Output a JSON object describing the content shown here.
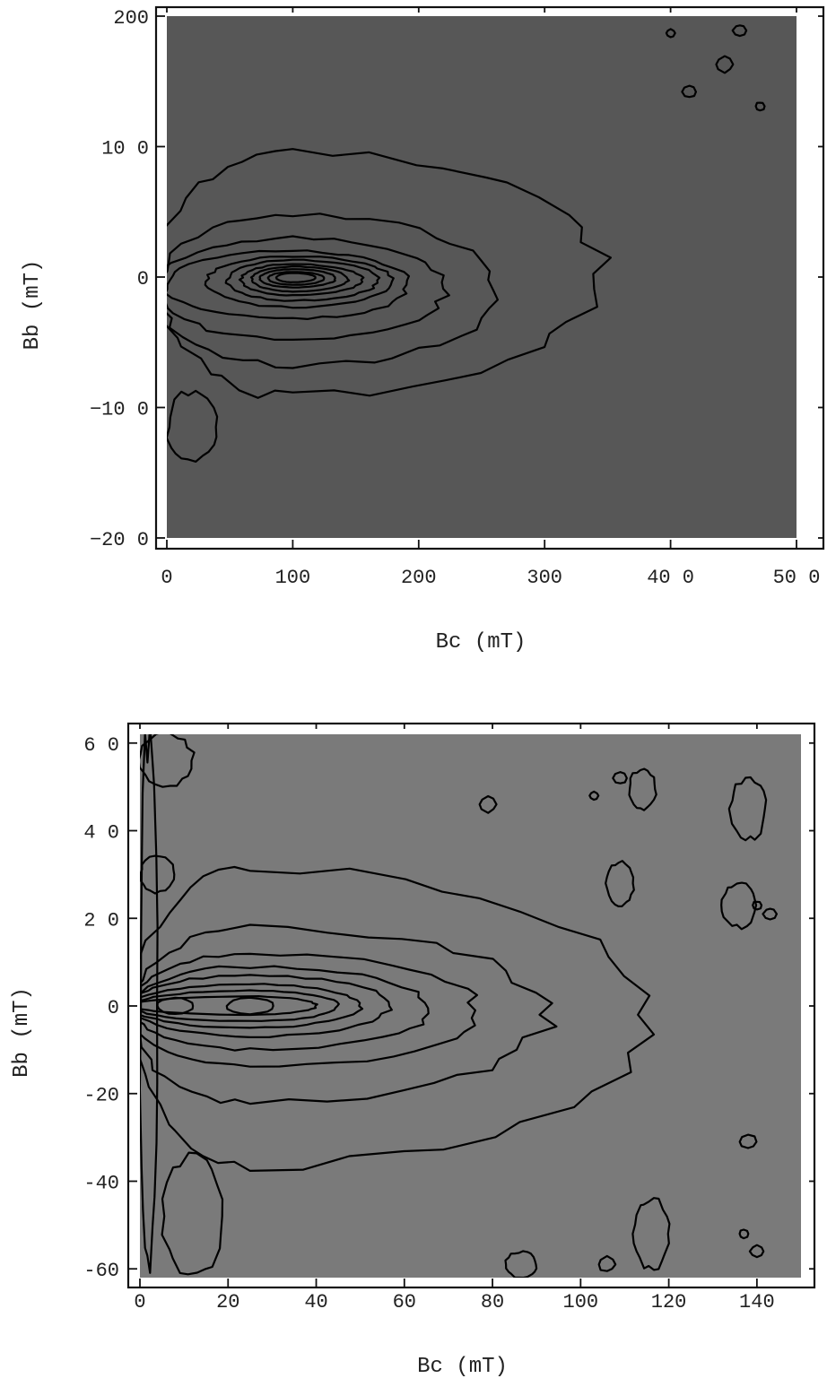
{
  "chart_data": [
    {
      "type": "heatmap",
      "subtype": "contour",
      "title": "",
      "xlabel": "Bc (mT)",
      "ylabel": "Bb (mT)",
      "xlim": [
        0,
        500
      ],
      "ylim": [
        -200,
        200
      ],
      "xticks": [
        0,
        100,
        200,
        300,
        400,
        500
      ],
      "xtick_labels": [
        "0",
        "100",
        "200",
        "300",
        "40 0",
        "50 0"
      ],
      "yticks": [
        -200,
        -100,
        0,
        100,
        200
      ],
      "ytick_labels": [
        "−20 0",
        "−10 0",
        "0",
        "10 0",
        "200"
      ],
      "grid": false,
      "colormap": "grayscale",
      "background_color": "#575757",
      "peak": {
        "x": 100,
        "y": 0
      },
      "levels": [
        {
          "level": 1,
          "color": "#666666",
          "x_min": 0,
          "x_max": 345,
          "y_min": -92,
          "y_max": 97
        },
        {
          "level": 2,
          "color": "#707070",
          "x_min": 0,
          "x_max": 263,
          "y_min": -68,
          "y_max": 48
        },
        {
          "level": 3,
          "color": "#7a7a7a",
          "x_min": 0,
          "x_max": 222,
          "y_min": -48,
          "y_max": 30
        },
        {
          "level": 4,
          "color": "#858585",
          "x_min": 6,
          "x_max": 192,
          "y_min": -32,
          "y_max": 20
        },
        {
          "level": 5,
          "color": "#919191",
          "x_min": 36,
          "x_max": 180,
          "y_min": -23,
          "y_max": 16
        },
        {
          "level": 6,
          "color": "#9e9e9e",
          "x_min": 52,
          "x_max": 168,
          "y_min": -18,
          "y_max": 13
        },
        {
          "level": 7,
          "color": "#ababab",
          "x_min": 62,
          "x_max": 155,
          "y_min": -14,
          "y_max": 10
        },
        {
          "level": 8,
          "color": "#b8b8b8",
          "x_min": 70,
          "x_max": 144,
          "y_min": -11,
          "y_max": 8
        },
        {
          "level": 9,
          "color": "#c6c6c6",
          "x_min": 76,
          "x_max": 134,
          "y_min": -8,
          "y_max": 6
        },
        {
          "level": 10,
          "color": "#d6d6d6",
          "x_min": 82,
          "x_max": 125,
          "y_min": -6,
          "y_max": 4
        },
        {
          "level": 11,
          "color": "#f2f2f2",
          "x_min": 88,
          "x_max": 118,
          "y_min": -4,
          "y_max": 3
        }
      ],
      "low_regions": [
        {
          "x": [
            0,
            40
          ],
          "y": [
            -142,
            -88
          ],
          "color": "#484848"
        }
      ],
      "small_islands": [
        {
          "x": 400,
          "y": 187
        },
        {
          "x": 415,
          "y": 142
        },
        {
          "x": 443,
          "y": 163
        },
        {
          "x": 471,
          "y": 131
        },
        {
          "x": 455,
          "y": 189
        }
      ]
    },
    {
      "type": "heatmap",
      "subtype": "contour",
      "title": "",
      "xlabel": "Bc (mT)",
      "ylabel": "Bb (mT)",
      "xlim": [
        0,
        150
      ],
      "ylim": [
        -62,
        62
      ],
      "xticks": [
        0,
        20,
        40,
        60,
        80,
        100,
        120,
        140
      ],
      "xtick_labels": [
        "0",
        "20",
        "40",
        "60",
        "80",
        "100",
        "120",
        "140"
      ],
      "yticks": [
        -60,
        -40,
        -20,
        0,
        20,
        40,
        60
      ],
      "ytick_labels": [
        "-60",
        "-40",
        "-20",
        "0",
        "2 0",
        "4 0",
        "6 0"
      ],
      "grid": false,
      "colormap": "grayscale",
      "background_color": "#7a7a7a",
      "peaks": [
        {
          "x": 8,
          "y": 0
        },
        {
          "x": 25,
          "y": 0
        }
      ],
      "levels": [
        {
          "level": 1,
          "color": "#8a8a8a",
          "x_min": 0,
          "x_max": 115,
          "y_min": -36,
          "y_max": 32
        },
        {
          "level": 2,
          "color": "#9a9a9a",
          "x_min": 0,
          "x_max": 92,
          "y_min": -22,
          "y_max": 18
        },
        {
          "level": 3,
          "color": "#a8a8a8",
          "x_min": 0,
          "x_max": 77,
          "y_min": -14,
          "y_max": 12
        },
        {
          "level": 4,
          "color": "#b6b6b6",
          "x_min": 0,
          "x_max": 66,
          "y_min": -10,
          "y_max": 9
        },
        {
          "level": 5,
          "color": "#c4c4c4",
          "x_min": 0,
          "x_max": 57,
          "y_min": -7,
          "y_max": 7
        },
        {
          "level": 6,
          "color": "#d2d2d2",
          "x_min": 0,
          "x_max": 50,
          "y_min": -5,
          "y_max": 5
        },
        {
          "level": 7,
          "color": "#e0e0e0",
          "x_min": 0,
          "x_max": 45,
          "y_min": -3.5,
          "y_max": 3.5
        },
        {
          "level": 8,
          "color": "#f2f2f2",
          "x_min": 0,
          "x_max": 40,
          "y_min": -2,
          "y_max": 2.2
        }
      ],
      "low_regions": [
        {
          "x": [
            0,
            4
          ],
          "y": [
            -62,
            62
          ],
          "color": "#666666"
        },
        {
          "x": [
            0,
            12
          ],
          "y": [
            50,
            62
          ],
          "color": "#666666"
        },
        {
          "x": [
            0,
            8
          ],
          "y": [
            26,
            34
          ],
          "color": "#666666"
        },
        {
          "x": [
            5,
            19
          ],
          "y": [
            -62,
            -34
          ],
          "color": "#666666"
        },
        {
          "x": [
            134,
            142
          ],
          "y": [
            38,
            52
          ],
          "color": "#666666"
        },
        {
          "x": [
            132,
            140
          ],
          "y": [
            18,
            28
          ],
          "color": "#666666"
        },
        {
          "x": [
            111,
            117
          ],
          "y": [
            45,
            54
          ],
          "color": "#666666"
        },
        {
          "x": [
            106,
            112
          ],
          "y": [
            23,
            33
          ],
          "color": "#666666"
        },
        {
          "x": [
            112,
            120
          ],
          "y": [
            -60,
            -44
          ],
          "color": "#666666"
        },
        {
          "x": [
            83,
            90
          ],
          "y": [
            -62,
            -56
          ],
          "color": "#666666"
        }
      ],
      "small_islands": [
        {
          "x": 103,
          "y": 48
        },
        {
          "x": 109,
          "y": 52
        },
        {
          "x": 79,
          "y": 46
        },
        {
          "x": 140,
          "y": 23
        },
        {
          "x": 143,
          "y": 21
        },
        {
          "x": 138,
          "y": -31
        },
        {
          "x": 137,
          "y": -52
        },
        {
          "x": 140,
          "y": -56
        },
        {
          "x": 106,
          "y": -59
        }
      ]
    }
  ]
}
